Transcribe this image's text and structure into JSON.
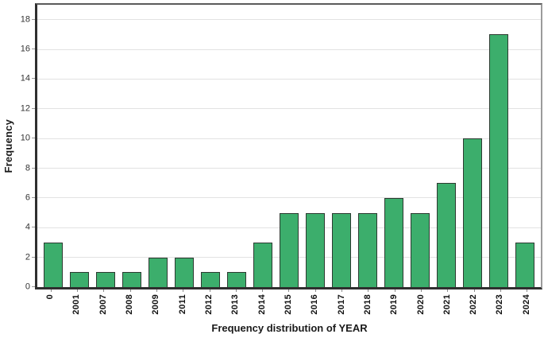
{
  "chart_data": {
    "type": "bar",
    "title": "Frequency distribution of YEAR",
    "xlabel": "Frequency distribution of YEAR",
    "ylabel": "Frequency",
    "categories": [
      "0",
      "2001",
      "2007",
      "2008",
      "2009",
      "2011",
      "2012",
      "2013",
      "2014",
      "2015",
      "2016",
      "2017",
      "2018",
      "2019",
      "2020",
      "2021",
      "2022",
      "2023",
      "2024"
    ],
    "values": [
      3,
      1,
      1,
      1,
      2,
      2,
      1,
      1,
      3,
      5,
      5,
      5,
      5,
      6,
      5,
      7,
      10,
      17,
      3
    ],
    "yticks": [
      0,
      2,
      4,
      6,
      8,
      10,
      12,
      14,
      16,
      18
    ],
    "ylim": [
      0,
      19
    ],
    "grid": true,
    "legend_position": "none",
    "colors": {
      "bar_fill": "#3cae6c",
      "bar_border": "#2d3a31",
      "gridline": "#e2e2e2",
      "axis": "#2f2f2f",
      "text": "#1a1a1a"
    }
  }
}
